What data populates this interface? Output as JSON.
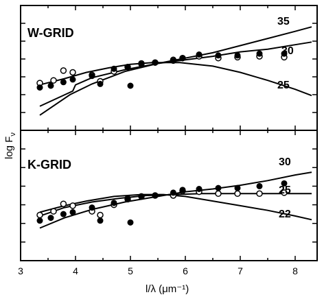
{
  "chart_data": [
    {
      "type": "line",
      "panel_label": "W-GRID",
      "xlabel": "l/λ (μm⁻¹)",
      "ylabel": "log F",
      "ylabel_subscript": "ν",
      "xlim": [
        3.0,
        8.4
      ],
      "ylim": [
        0,
        7
      ],
      "grid": false,
      "series": [
        {
          "name": "35",
          "x": [
            3.35,
            3.9,
            4.3,
            4.9,
            5.5,
            6.0,
            6.5,
            7.0,
            7.5,
            8.0,
            8.3
          ],
          "y": [
            0.85,
            2.0,
            2.6,
            3.3,
            3.75,
            4.05,
            4.35,
            4.75,
            5.15,
            5.55,
            5.8
          ]
        },
        {
          "name": "30",
          "x": [
            3.35,
            3.95,
            4.0,
            4.3,
            4.9,
            5.5,
            6.0,
            6.5,
            7.0,
            7.5,
            8.0,
            8.3
          ],
          "y": [
            1.35,
            2.2,
            2.55,
            2.95,
            3.4,
            3.75,
            3.95,
            4.15,
            4.4,
            4.55,
            4.8,
            4.95
          ]
        },
        {
          "name": "25",
          "x": [
            3.35,
            3.8,
            4.2,
            4.6,
            5.0,
            5.4,
            5.9,
            6.5,
            7.0,
            7.5,
            8.0,
            8.3
          ],
          "y": [
            2.55,
            2.9,
            3.25,
            3.5,
            3.7,
            3.8,
            3.8,
            3.6,
            3.25,
            2.8,
            2.3,
            1.95
          ]
        }
      ],
      "points_open": {
        "x": [
          3.35,
          3.6,
          3.78,
          3.95,
          4.3,
          4.45,
          4.7,
          4.95,
          5.2,
          5.45,
          5.78,
          5.95,
          6.25,
          6.6,
          6.95,
          7.35,
          7.8
        ],
        "y": [
          2.65,
          2.8,
          3.35,
          3.25,
          3.1,
          2.75,
          3.3,
          3.55,
          3.75,
          3.8,
          3.95,
          4.05,
          4.15,
          4.05,
          4.1,
          4.15,
          4.1
        ]
      },
      "points_filled": {
        "x": [
          3.35,
          3.55,
          3.78,
          3.95,
          4.3,
          4.45,
          4.7,
          4.95,
          5.0,
          5.2,
          5.45,
          5.78,
          5.95,
          6.25,
          6.6,
          6.95,
          7.35,
          7.8
        ],
        "y": [
          2.4,
          2.5,
          2.7,
          2.85,
          3.05,
          2.6,
          3.45,
          3.55,
          2.5,
          3.7,
          3.8,
          3.9,
          4.05,
          4.25,
          4.2,
          4.2,
          4.3,
          4.3
        ]
      }
    },
    {
      "type": "line",
      "panel_label": "K-GRID",
      "xlabel": "l/λ (μm⁻¹)",
      "ylabel": "log F",
      "ylabel_subscript": "ν",
      "xlim": [
        3.0,
        8.4
      ],
      "ylim": [
        0,
        7
      ],
      "grid": false,
      "series": [
        {
          "name": "30",
          "x": [
            3.35,
            3.8,
            4.3,
            4.9,
            5.5,
            6.0,
            6.5,
            7.0,
            7.5,
            8.0,
            8.3
          ],
          "y": [
            1.75,
            2.3,
            2.75,
            3.15,
            3.45,
            3.7,
            3.85,
            4.05,
            4.3,
            4.6,
            4.75
          ]
        },
        {
          "name": "25",
          "x": [
            3.35,
            3.8,
            4.3,
            4.8,
            5.3,
            5.8,
            6.3,
            6.8,
            7.3,
            7.8,
            8.3
          ],
          "y": [
            2.4,
            2.85,
            3.15,
            3.35,
            3.5,
            3.55,
            3.6,
            3.6,
            3.6,
            3.6,
            3.6
          ]
        },
        {
          "name": "22",
          "x": [
            3.35,
            3.8,
            4.2,
            4.7,
            5.2,
            5.6,
            6.0,
            6.5,
            7.0,
            7.5,
            8.0,
            8.3
          ],
          "y": [
            2.6,
            2.95,
            3.2,
            3.45,
            3.55,
            3.55,
            3.45,
            3.2,
            2.95,
            2.7,
            2.4,
            2.2
          ]
        }
      ],
      "points_open": {
        "x": [
          3.35,
          3.6,
          3.78,
          3.95,
          4.3,
          4.45,
          4.7,
          4.95,
          5.2,
          5.45,
          5.78,
          5.95,
          6.25,
          6.6,
          6.95,
          7.35,
          7.8
        ],
        "y": [
          2.45,
          2.65,
          3.05,
          2.95,
          2.65,
          2.45,
          3.0,
          3.3,
          3.45,
          3.5,
          3.5,
          3.75,
          3.7,
          3.6,
          3.6,
          3.6,
          3.65
        ]
      },
      "points_filled": {
        "x": [
          3.35,
          3.55,
          3.78,
          3.95,
          4.3,
          4.45,
          4.7,
          4.95,
          5.0,
          5.2,
          5.45,
          5.78,
          5.95,
          6.25,
          6.6,
          6.95,
          7.35,
          7.8
        ],
        "y": [
          2.15,
          2.3,
          2.5,
          2.6,
          2.85,
          2.15,
          3.1,
          3.35,
          2.05,
          3.45,
          3.5,
          3.65,
          3.8,
          3.85,
          3.9,
          3.9,
          4.0,
          4.15
        ]
      }
    }
  ],
  "x_ticks": [
    "3",
    "4",
    "5",
    "6",
    "7",
    "8"
  ],
  "x_axis_label": "l/λ (μm⁻¹)",
  "y_axis_label": "log F",
  "y_axis_label_sub": "ν"
}
